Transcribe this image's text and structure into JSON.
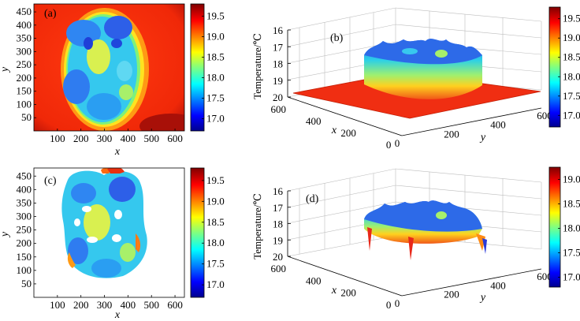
{
  "figure": {
    "panels": [
      {
        "label": "(a)"
      },
      {
        "label": "(b)"
      },
      {
        "label": "(c)"
      },
      {
        "label": "(d)"
      }
    ]
  },
  "chart_data": [
    {
      "panel": "(a)",
      "type": "heatmap",
      "xlabel": "x",
      "ylabel": "y",
      "xticks": [
        100,
        200,
        300,
        400,
        500,
        600
      ],
      "yticks": [
        50,
        100,
        150,
        200,
        250,
        300,
        350,
        400,
        450
      ],
      "xlim": [
        0,
        640
      ],
      "ylim": [
        0,
        480
      ],
      "colorbar": {
        "ticks": [
          17.0,
          17.5,
          18.0,
          18.5,
          19.0,
          19.5
        ],
        "range": [
          16.7,
          19.8
        ],
        "colormap": "jet"
      }
    },
    {
      "panel": "(b)",
      "type": "heatmap",
      "view": "3d-surface",
      "xlabel": "x",
      "ylabel": "y",
      "zlabel": "Temperature/℃",
      "xticks": [
        0,
        200,
        400,
        600
      ],
      "yticks": [
        0,
        200,
        400,
        600
      ],
      "zticks": [
        16,
        17,
        18,
        19,
        20
      ],
      "zlim": [
        16,
        20
      ],
      "colorbar": {
        "ticks": [
          17.0,
          17.5,
          18.0,
          18.5,
          19.0,
          19.5
        ],
        "range": [
          16.7,
          19.8
        ],
        "colormap": "jet"
      }
    },
    {
      "panel": "(c)",
      "type": "heatmap",
      "xlabel": "x",
      "ylabel": "y",
      "xticks": [
        100,
        200,
        300,
        400,
        500,
        600
      ],
      "yticks": [
        50,
        100,
        150,
        200,
        250,
        300,
        350,
        400,
        450
      ],
      "xlim": [
        0,
        640
      ],
      "ylim": [
        0,
        480
      ],
      "colorbar": {
        "ticks": [
          17.0,
          17.5,
          18.0,
          18.5,
          19.0,
          19.5
        ],
        "range": [
          16.7,
          19.8
        ],
        "colormap": "jet"
      }
    },
    {
      "panel": "(d)",
      "type": "heatmap",
      "view": "3d-surface",
      "xlabel": "x",
      "ylabel": "y",
      "zlabel": "Temperature/℃",
      "xticks": [
        0,
        200,
        400,
        600
      ],
      "yticks": [
        0,
        200,
        400,
        600
      ],
      "zticks": [
        16,
        17,
        18,
        19,
        20
      ],
      "zlim": [
        16,
        20
      ],
      "colorbar": {
        "ticks": [
          17.0,
          17.5,
          18.0,
          18.5,
          19.0
        ],
        "range": [
          16.8,
          19.25
        ],
        "colormap": "jet"
      }
    }
  ]
}
